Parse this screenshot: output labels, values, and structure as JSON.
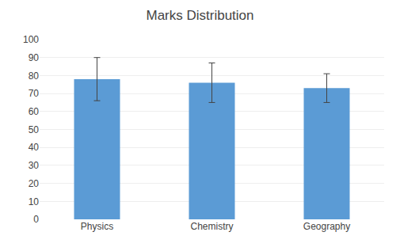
{
  "chart_data": {
    "type": "bar",
    "title": "Marks Distribution",
    "categories": [
      "Physics",
      "Chemistry",
      "Geography"
    ],
    "values": [
      78,
      76,
      73
    ],
    "errors": [
      12,
      11,
      8
    ],
    "color": "#5B9BD5",
    "ylim": [
      0,
      100
    ],
    "yticks": [
      0,
      10,
      20,
      30,
      40,
      50,
      60,
      70,
      80,
      90,
      100
    ],
    "grid": true
  }
}
